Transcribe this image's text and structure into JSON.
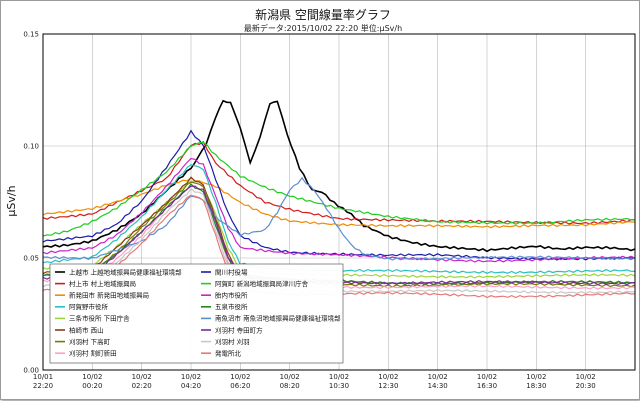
{
  "chart_data": {
    "type": "line",
    "title": "新潟県 空間線量率グラフ",
    "subtitle": "最新データ:2015/10/02 22:20 単位:μSv/h",
    "ylabel": "μSv/h",
    "ylim": [
      0,
      0.15
    ],
    "yticks": [
      "0.00",
      "0.05",
      "0.10",
      "0.15"
    ],
    "xlim": [
      0,
      24
    ],
    "x_ticks": [
      {
        "t": 0,
        "date": "10/01",
        "time": "22:20"
      },
      {
        "t": 2,
        "date": "10/02",
        "time": "00:20"
      },
      {
        "t": 4,
        "date": "10/02",
        "time": "02:20"
      },
      {
        "t": 6,
        "date": "10/02",
        "time": "04:20"
      },
      {
        "t": 8,
        "date": "10/02",
        "time": "06:20"
      },
      {
        "t": 10,
        "date": "10/02",
        "time": "08:20"
      },
      {
        "t": 12,
        "date": "10/02",
        "time": "10:30"
      },
      {
        "t": 14,
        "date": "10/02",
        "time": "12:30"
      },
      {
        "t": 16,
        "date": "10/02",
        "time": "14:30"
      },
      {
        "t": 18,
        "date": "10/02",
        "time": "16:30"
      },
      {
        "t": 20,
        "date": "10/02",
        "time": "18:30"
      },
      {
        "t": 22,
        "date": "10/02",
        "time": "20:30"
      }
    ],
    "grid": true,
    "legend_position": "bottom-left",
    "series": [
      {
        "name": "上越市 上越地域振興局健康福祉環境部",
        "color": "#000000",
        "width": 1.6,
        "points": [
          [
            0,
            0.055
          ],
          [
            1,
            0.056
          ],
          [
            2,
            0.058
          ],
          [
            3,
            0.063
          ],
          [
            4,
            0.07
          ],
          [
            5,
            0.08
          ],
          [
            5.5,
            0.085
          ],
          [
            6,
            0.09
          ],
          [
            6.6,
            0.1
          ],
          [
            7,
            0.112
          ],
          [
            7.3,
            0.12
          ],
          [
            7.6,
            0.12
          ],
          [
            8,
            0.108
          ],
          [
            8.4,
            0.093
          ],
          [
            8.8,
            0.104
          ],
          [
            9.2,
            0.118
          ],
          [
            9.5,
            0.12
          ],
          [
            9.9,
            0.105
          ],
          [
            10.4,
            0.09
          ],
          [
            10.9,
            0.08
          ],
          [
            11.3,
            0.08
          ],
          [
            11.8,
            0.075
          ],
          [
            12.5,
            0.07
          ],
          [
            13,
            0.065
          ],
          [
            14,
            0.06
          ],
          [
            15,
            0.057
          ],
          [
            16,
            0.055
          ],
          [
            17,
            0.054
          ],
          [
            18,
            0.053
          ],
          [
            19,
            0.054
          ],
          [
            20,
            0.055
          ],
          [
            21,
            0.054
          ],
          [
            22,
            0.055
          ],
          [
            23,
            0.055
          ],
          [
            24,
            0.054
          ]
        ]
      },
      {
        "name": "村上市 村上地域振興局",
        "color": "#d11a1a",
        "width": 1.2,
        "points": [
          [
            0,
            0.068
          ],
          [
            2,
            0.07
          ],
          [
            3,
            0.075
          ],
          [
            4,
            0.08
          ],
          [
            5,
            0.085
          ],
          [
            6,
            0.1
          ],
          [
            6.5,
            0.101
          ],
          [
            7,
            0.092
          ],
          [
            8,
            0.082
          ],
          [
            9,
            0.075
          ],
          [
            10,
            0.072
          ],
          [
            11,
            0.07
          ],
          [
            12,
            0.068
          ],
          [
            14,
            0.067
          ],
          [
            16,
            0.066
          ],
          [
            18,
            0.066
          ],
          [
            20,
            0.066
          ],
          [
            22,
            0.066
          ],
          [
            24,
            0.067
          ]
        ]
      },
      {
        "name": "新発田市 新発田地域振興局",
        "color": "#f08c00",
        "width": 1.2,
        "points": [
          [
            0,
            0.07
          ],
          [
            2,
            0.072
          ],
          [
            4,
            0.078
          ],
          [
            5,
            0.082
          ],
          [
            6,
            0.085
          ],
          [
            7,
            0.082
          ],
          [
            8,
            0.075
          ],
          [
            9,
            0.07
          ],
          [
            10,
            0.067
          ],
          [
            12,
            0.065
          ],
          [
            14,
            0.064
          ],
          [
            16,
            0.064
          ],
          [
            18,
            0.064
          ],
          [
            20,
            0.065
          ],
          [
            22,
            0.065
          ],
          [
            24,
            0.066
          ]
        ]
      },
      {
        "name": "阿賀野市役所",
        "color": "#28c0c0",
        "width": 1.2,
        "points": [
          [
            0,
            0.048
          ],
          [
            2,
            0.05
          ],
          [
            3,
            0.058
          ],
          [
            4,
            0.068
          ],
          [
            5,
            0.08
          ],
          [
            6,
            0.092
          ],
          [
            6.5,
            0.09
          ],
          [
            7,
            0.075
          ],
          [
            7.5,
            0.058
          ],
          [
            8,
            0.048
          ],
          [
            9,
            0.046
          ],
          [
            10,
            0.045
          ],
          [
            12,
            0.044
          ],
          [
            16,
            0.044
          ],
          [
            20,
            0.044
          ],
          [
            24,
            0.044
          ]
        ]
      },
      {
        "name": "三条市役所 下田庁舎",
        "color": "#9ad63a",
        "width": 1.2,
        "points": [
          [
            0,
            0.045
          ],
          [
            2,
            0.046
          ],
          [
            3,
            0.055
          ],
          [
            4,
            0.065
          ],
          [
            5,
            0.075
          ],
          [
            6,
            0.085
          ],
          [
            6.4,
            0.084
          ],
          [
            7,
            0.07
          ],
          [
            7.5,
            0.055
          ],
          [
            8,
            0.045
          ],
          [
            9,
            0.043
          ],
          [
            12,
            0.042
          ],
          [
            16,
            0.042
          ],
          [
            20,
            0.042
          ],
          [
            24,
            0.042
          ]
        ]
      },
      {
        "name": "柏崎市 西山",
        "color": "#8b3a1a",
        "width": 1.2,
        "points": [
          [
            0,
            0.043
          ],
          [
            2,
            0.045
          ],
          [
            3,
            0.055
          ],
          [
            4,
            0.065
          ],
          [
            5,
            0.075
          ],
          [
            6,
            0.086
          ],
          [
            6.5,
            0.083
          ],
          [
            7,
            0.068
          ],
          [
            7.5,
            0.052
          ],
          [
            8,
            0.042
          ],
          [
            10,
            0.04
          ],
          [
            14,
            0.039
          ],
          [
            18,
            0.039
          ],
          [
            24,
            0.039
          ]
        ]
      },
      {
        "name": "刈羽村 下高町",
        "color": "#7a7a00",
        "width": 1.2,
        "points": [
          [
            0,
            0.042
          ],
          [
            2,
            0.044
          ],
          [
            3,
            0.053
          ],
          [
            4,
            0.064
          ],
          [
            5,
            0.074
          ],
          [
            6,
            0.084
          ],
          [
            6.5,
            0.082
          ],
          [
            7,
            0.066
          ],
          [
            7.5,
            0.05
          ],
          [
            8,
            0.041
          ],
          [
            10,
            0.039
          ],
          [
            14,
            0.038
          ],
          [
            18,
            0.038
          ],
          [
            24,
            0.038
          ]
        ]
      },
      {
        "name": "刈羽村 割町新田",
        "color": "#ff9ec8",
        "width": 1.2,
        "points": [
          [
            0,
            0.04
          ],
          [
            2,
            0.042
          ],
          [
            3,
            0.05
          ],
          [
            4,
            0.06
          ],
          [
            5,
            0.072
          ],
          [
            6,
            0.082
          ],
          [
            6.5,
            0.08
          ],
          [
            7,
            0.064
          ],
          [
            7.5,
            0.048
          ],
          [
            8,
            0.04
          ],
          [
            10,
            0.038
          ],
          [
            14,
            0.037
          ],
          [
            18,
            0.037
          ],
          [
            24,
            0.037
          ]
        ]
      },
      {
        "name": "関川村役場",
        "color": "#1a1aa8",
        "width": 1.2,
        "points": [
          [
            0,
            0.058
          ],
          [
            2,
            0.06
          ],
          [
            3,
            0.065
          ],
          [
            4,
            0.075
          ],
          [
            5,
            0.09
          ],
          [
            6,
            0.106
          ],
          [
            6.5,
            0.1
          ],
          [
            7,
            0.085
          ],
          [
            7.5,
            0.07
          ],
          [
            8,
            0.06
          ],
          [
            9,
            0.055
          ],
          [
            10,
            0.053
          ],
          [
            12,
            0.052
          ],
          [
            14,
            0.051
          ],
          [
            16,
            0.051
          ],
          [
            18,
            0.05
          ],
          [
            20,
            0.05
          ],
          [
            22,
            0.05
          ],
          [
            24,
            0.05
          ]
        ]
      },
      {
        "name": "阿賀町 新潟地域振興局津川庁舎",
        "color": "#22cc22",
        "width": 1.2,
        "points": [
          [
            0,
            0.06
          ],
          [
            1,
            0.062
          ],
          [
            2,
            0.066
          ],
          [
            3,
            0.072
          ],
          [
            4,
            0.08
          ],
          [
            5,
            0.088
          ],
          [
            6,
            0.1
          ],
          [
            6.5,
            0.102
          ],
          [
            7,
            0.096
          ],
          [
            8,
            0.087
          ],
          [
            9,
            0.082
          ],
          [
            10,
            0.078
          ],
          [
            11,
            0.075
          ],
          [
            12,
            0.072
          ],
          [
            13,
            0.07
          ],
          [
            14,
            0.068
          ],
          [
            16,
            0.066
          ],
          [
            18,
            0.066
          ],
          [
            20,
            0.066
          ],
          [
            22,
            0.067
          ],
          [
            24,
            0.067
          ]
        ]
      },
      {
        "name": "胎内市役所",
        "color": "#cc22cc",
        "width": 1.2,
        "points": [
          [
            0,
            0.052
          ],
          [
            2,
            0.054
          ],
          [
            3,
            0.06
          ],
          [
            4,
            0.07
          ],
          [
            5,
            0.082
          ],
          [
            6,
            0.095
          ],
          [
            6.5,
            0.092
          ],
          [
            7,
            0.078
          ],
          [
            7.5,
            0.064
          ],
          [
            8,
            0.055
          ],
          [
            10,
            0.052
          ],
          [
            14,
            0.05
          ],
          [
            18,
            0.049
          ],
          [
            24,
            0.05
          ]
        ]
      },
      {
        "name": "五泉市役所",
        "color": "#228822",
        "width": 1.2,
        "points": [
          [
            0,
            0.042
          ],
          [
            2,
            0.043
          ],
          [
            3,
            0.052
          ],
          [
            4,
            0.062
          ],
          [
            5,
            0.073
          ],
          [
            6,
            0.083
          ],
          [
            6.5,
            0.08
          ],
          [
            7,
            0.065
          ],
          [
            7.5,
            0.05
          ],
          [
            8,
            0.041
          ],
          [
            10,
            0.04
          ],
          [
            14,
            0.039
          ],
          [
            18,
            0.039
          ],
          [
            24,
            0.039
          ]
        ]
      },
      {
        "name": "南魚沼市 南魚沼地域振興局健康福祉環境部",
        "color": "#5b8ed0",
        "width": 1.2,
        "points": [
          [
            0,
            0.05
          ],
          [
            2,
            0.05
          ],
          [
            4,
            0.058
          ],
          [
            5,
            0.065
          ],
          [
            6,
            0.078
          ],
          [
            6.5,
            0.076
          ],
          [
            7,
            0.068
          ],
          [
            8,
            0.06
          ],
          [
            9,
            0.062
          ],
          [
            9.5,
            0.07
          ],
          [
            10,
            0.08
          ],
          [
            10.5,
            0.085
          ],
          [
            11,
            0.08
          ],
          [
            11.5,
            0.072
          ],
          [
            12,
            0.063
          ],
          [
            12.5,
            0.056
          ],
          [
            13,
            0.052
          ],
          [
            14,
            0.05
          ],
          [
            16,
            0.05
          ],
          [
            18,
            0.05
          ],
          [
            20,
            0.05
          ],
          [
            24,
            0.05
          ]
        ]
      },
      {
        "name": "刈羽村 寺田町方",
        "color": "#7a2a9a",
        "width": 1.2,
        "points": [
          [
            0,
            0.041
          ],
          [
            2,
            0.043
          ],
          [
            3,
            0.052
          ],
          [
            4,
            0.062
          ],
          [
            5,
            0.072
          ],
          [
            6,
            0.082
          ],
          [
            6.5,
            0.08
          ],
          [
            7,
            0.066
          ],
          [
            7.5,
            0.05
          ],
          [
            8,
            0.042
          ],
          [
            10,
            0.04
          ],
          [
            14,
            0.039
          ],
          [
            18,
            0.039
          ],
          [
            24,
            0.039
          ]
        ]
      },
      {
        "name": "刈羽村 刈羽",
        "color": "#c8c8c8",
        "width": 1.2,
        "points": [
          [
            0,
            0.038
          ],
          [
            2,
            0.04
          ],
          [
            3,
            0.048
          ],
          [
            4,
            0.058
          ],
          [
            5,
            0.07
          ],
          [
            6,
            0.08
          ],
          [
            6.5,
            0.078
          ],
          [
            7,
            0.062
          ],
          [
            7.5,
            0.046
          ],
          [
            8,
            0.038
          ],
          [
            10,
            0.036
          ],
          [
            14,
            0.035
          ],
          [
            18,
            0.035
          ],
          [
            24,
            0.035
          ]
        ]
      },
      {
        "name": "発電所北",
        "color": "#e87878",
        "width": 1.2,
        "points": [
          [
            0,
            0.036
          ],
          [
            2,
            0.038
          ],
          [
            3,
            0.046
          ],
          [
            4,
            0.056
          ],
          [
            5,
            0.068
          ],
          [
            6,
            0.078
          ],
          [
            6.5,
            0.076
          ],
          [
            7,
            0.06
          ],
          [
            7.5,
            0.044
          ],
          [
            8,
            0.036
          ],
          [
            10,
            0.034
          ],
          [
            14,
            0.034
          ],
          [
            18,
            0.033
          ],
          [
            24,
            0.034
          ]
        ]
      }
    ]
  }
}
